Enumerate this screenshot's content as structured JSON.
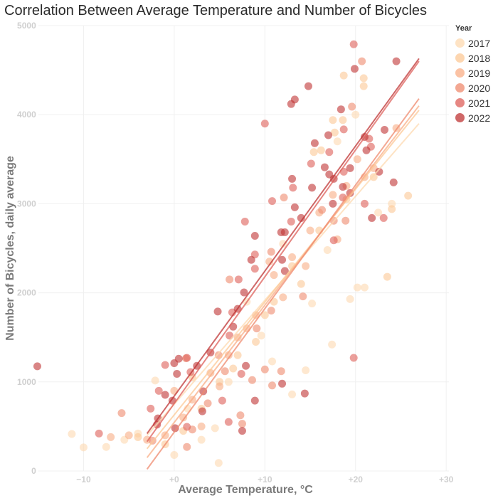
{
  "chart_data": {
    "type": "scatter",
    "title": "Correlation Between Average Temperature and Number of Bicycles",
    "xlabel": "Average Temperature, °C",
    "ylabel": "Number of Bicycles, daily average",
    "xlim": [
      -15,
      30.3
    ],
    "ylim": [
      0,
      5000
    ],
    "xticks": [
      {
        "v": -10,
        "label": "−10"
      },
      {
        "v": 0,
        "label": "+0"
      },
      {
        "v": 10,
        "label": "+10"
      },
      {
        "v": 20,
        "label": "+20"
      },
      {
        "v": 30,
        "label": "+30"
      }
    ],
    "yticks": [
      {
        "v": 0,
        "label": "0"
      },
      {
        "v": 1000,
        "label": "1000"
      },
      {
        "v": 2000,
        "label": "2000"
      },
      {
        "v": 3000,
        "label": "3000"
      },
      {
        "v": 4000,
        "label": "4000"
      },
      {
        "v": 5000,
        "label": "5000"
      }
    ],
    "grid": true,
    "legend": {
      "title": "Year",
      "placement": "right"
    },
    "series": [
      {
        "name": "2017",
        "color": "#fdd9b0",
        "trend": [
          [
            -3,
            400
          ],
          [
            27,
            3900
          ]
        ],
        "points": [
          [
            -11.3,
            415
          ],
          [
            -10,
            265
          ],
          [
            -7.5,
            270
          ],
          [
            -5.5,
            350
          ],
          [
            -4,
            420
          ],
          [
            17.4,
            1420
          ],
          [
            20.2,
            2060
          ],
          [
            21,
            2060
          ],
          [
            19.4,
            1930
          ],
          [
            15.2,
            1880
          ],
          [
            9.6,
            1520
          ],
          [
            14.5,
            1130
          ],
          [
            10.8,
            1230
          ],
          [
            0,
            180
          ],
          [
            4.5,
            480
          ],
          [
            3,
            350
          ],
          [
            6,
            1000
          ],
          [
            13,
            860
          ],
          [
            16.9,
            2480
          ],
          [
            22.5,
            2900
          ],
          [
            24,
            3000
          ],
          [
            20,
            4000
          ],
          [
            18,
            3700
          ],
          [
            12,
            2550
          ],
          [
            8,
            1900
          ],
          [
            1.5,
            700
          ],
          [
            -2.1,
            1015
          ],
          [
            4.9,
            90
          ]
        ]
      },
      {
        "name": "2018",
        "color": "#fcc896",
        "trend": [
          [
            -3,
            250
          ],
          [
            27,
            4050
          ]
        ],
        "points": [
          [
            20.9,
            4410
          ],
          [
            20.9,
            4320
          ],
          [
            18.7,
            4440
          ],
          [
            17.5,
            3940
          ],
          [
            18.6,
            3940
          ],
          [
            17.7,
            3800
          ],
          [
            15.4,
            3580
          ],
          [
            16.2,
            3600
          ],
          [
            25.8,
            3090
          ],
          [
            24,
            2940
          ],
          [
            23.5,
            2180
          ],
          [
            14,
            2100
          ],
          [
            11,
            1900
          ],
          [
            9,
            1450
          ],
          [
            7,
            1300
          ],
          [
            5,
            1000
          ],
          [
            3,
            700
          ],
          [
            1,
            450
          ],
          [
            -1,
            300
          ],
          [
            -4,
            380
          ],
          [
            13,
            2300
          ],
          [
            16,
            2700
          ],
          [
            19,
            3050
          ],
          [
            22,
            3300
          ],
          [
            10,
            1750
          ],
          [
            2,
            1050
          ],
          [
            6.5,
            1150
          ]
        ]
      },
      {
        "name": "2019",
        "color": "#f9ad85",
        "trend": [
          [
            -3,
            150
          ],
          [
            27,
            4100
          ]
        ],
        "points": [
          [
            20.2,
            3500
          ],
          [
            18,
            2600
          ],
          [
            14.5,
            2300
          ],
          [
            12,
            1950
          ],
          [
            10.5,
            2350
          ],
          [
            9,
            1750
          ],
          [
            7,
            1500
          ],
          [
            6,
            1300
          ],
          [
            4,
            1100
          ],
          [
            2,
            800
          ],
          [
            1,
            600
          ],
          [
            -1,
            400
          ],
          [
            0,
            900
          ],
          [
            3,
            500
          ],
          [
            16,
            2900
          ],
          [
            22,
            3400
          ],
          [
            24.5,
            3850
          ],
          [
            19,
            3200
          ],
          [
            13,
            2400
          ],
          [
            8,
            1600
          ],
          [
            -3,
            350
          ],
          [
            -7,
            380
          ],
          [
            -5,
            400
          ],
          [
            21,
            3300
          ],
          [
            15,
            2700
          ],
          [
            11,
            2200
          ],
          [
            5,
            950
          ],
          [
            17.5,
            3100
          ]
        ]
      },
      {
        "name": "2020",
        "color": "#ef8a6e",
        "trend": [
          [
            -3,
            20
          ],
          [
            27,
            4180
          ]
        ],
        "points": [
          [
            20.7,
            4600
          ],
          [
            19.6,
            4090
          ],
          [
            12.1,
            3070
          ],
          [
            16.3,
            2930
          ],
          [
            17.6,
            2810
          ],
          [
            18.9,
            2810
          ],
          [
            10.7,
            1800
          ],
          [
            10,
            1140
          ],
          [
            11.8,
            1120
          ],
          [
            10.8,
            960
          ],
          [
            7.3,
            625
          ],
          [
            7.5,
            530
          ],
          [
            5.6,
            1120
          ],
          [
            8.6,
            1020
          ],
          [
            3.7,
            760
          ],
          [
            1.4,
            270
          ],
          [
            2,
            465
          ],
          [
            -2.4,
            340
          ],
          [
            6.1,
            2150
          ],
          [
            9.1,
            1600
          ],
          [
            4.9,
            1300
          ],
          [
            1.3,
            1265
          ],
          [
            14.2,
            1960
          ],
          [
            10.7,
            2460
          ],
          [
            -5.8,
            650
          ]
        ]
      },
      {
        "name": "2021",
        "color": "#de5f59",
        "trend": [
          [
            -3,
            330
          ],
          [
            27,
            4600
          ]
        ],
        "points": [
          [
            19.8,
            4790
          ],
          [
            10,
            3900
          ],
          [
            18.7,
            3835
          ],
          [
            21.5,
            3730
          ],
          [
            21.7,
            3640
          ],
          [
            17.1,
            3580
          ],
          [
            15.1,
            3450
          ],
          [
            18.7,
            3360
          ],
          [
            13.1,
            3180
          ],
          [
            18.6,
            3070
          ],
          [
            21,
            3000
          ],
          [
            10.8,
            3030
          ],
          [
            23.1,
            2840
          ],
          [
            12.9,
            2800
          ],
          [
            7.8,
            2800
          ],
          [
            17.6,
            2590
          ],
          [
            8.9,
            2430
          ],
          [
            8.9,
            2270
          ],
          [
            7.1,
            2150
          ],
          [
            6.4,
            1780
          ],
          [
            6.1,
            1520
          ],
          [
            1.4,
            1270
          ],
          [
            -1,
            1190
          ],
          [
            -1.7,
            900
          ],
          [
            1.8,
            1110
          ],
          [
            6,
            550
          ],
          [
            -2.6,
            700
          ],
          [
            1.4,
            495
          ],
          [
            7.4,
            1090
          ],
          [
            5.3,
            790
          ],
          [
            -8.3,
            420
          ],
          [
            19.8,
            1270
          ]
        ]
      },
      {
        "name": "2022",
        "color": "#bf3434",
        "trend": [
          [
            -3,
            420
          ],
          [
            27,
            4630
          ]
        ],
        "points": [
          [
            -15.1,
            1175
          ],
          [
            24.5,
            4600
          ],
          [
            19.9,
            4515
          ],
          [
            14.8,
            4320
          ],
          [
            12.9,
            4120
          ],
          [
            13.3,
            4170
          ],
          [
            18.4,
            4060
          ],
          [
            17,
            3770
          ],
          [
            15.5,
            3680
          ],
          [
            23.2,
            3830
          ],
          [
            21,
            3750
          ],
          [
            21.2,
            3600
          ],
          [
            19.4,
            3400
          ],
          [
            16.6,
            3410
          ],
          [
            17.1,
            3330
          ],
          [
            17.6,
            3280
          ],
          [
            13,
            3280
          ],
          [
            15.2,
            3180
          ],
          [
            22.6,
            3360
          ],
          [
            24.2,
            3240
          ],
          [
            18.6,
            3190
          ],
          [
            19.4,
            3120
          ],
          [
            13.3,
            2960
          ],
          [
            17.5,
            3000
          ],
          [
            14,
            2840
          ],
          [
            21.8,
            2840
          ],
          [
            11.8,
            2680
          ],
          [
            12.2,
            2680
          ],
          [
            8.9,
            2640
          ],
          [
            8.5,
            2370
          ],
          [
            7.7,
            2005
          ],
          [
            4.8,
            1790
          ],
          [
            7,
            1820
          ],
          [
            6.5,
            1620
          ],
          [
            4,
            1330
          ],
          [
            2.5,
            1180
          ],
          [
            0.5,
            1260
          ],
          [
            0,
            1210
          ],
          [
            0.3,
            1090
          ],
          [
            3.2,
            895
          ],
          [
            -1,
            855
          ],
          [
            -0.2,
            790
          ],
          [
            -1.8,
            590
          ],
          [
            0.1,
            480
          ],
          [
            -1.9,
            520
          ],
          [
            3.1,
            670
          ],
          [
            7.9,
            1180
          ],
          [
            7.5,
            450
          ],
          [
            11.9,
            980
          ],
          [
            14.4,
            870
          ],
          [
            8.9,
            790
          ],
          [
            11.9,
            2370
          ],
          [
            12.2,
            2245
          ]
        ]
      }
    ]
  }
}
